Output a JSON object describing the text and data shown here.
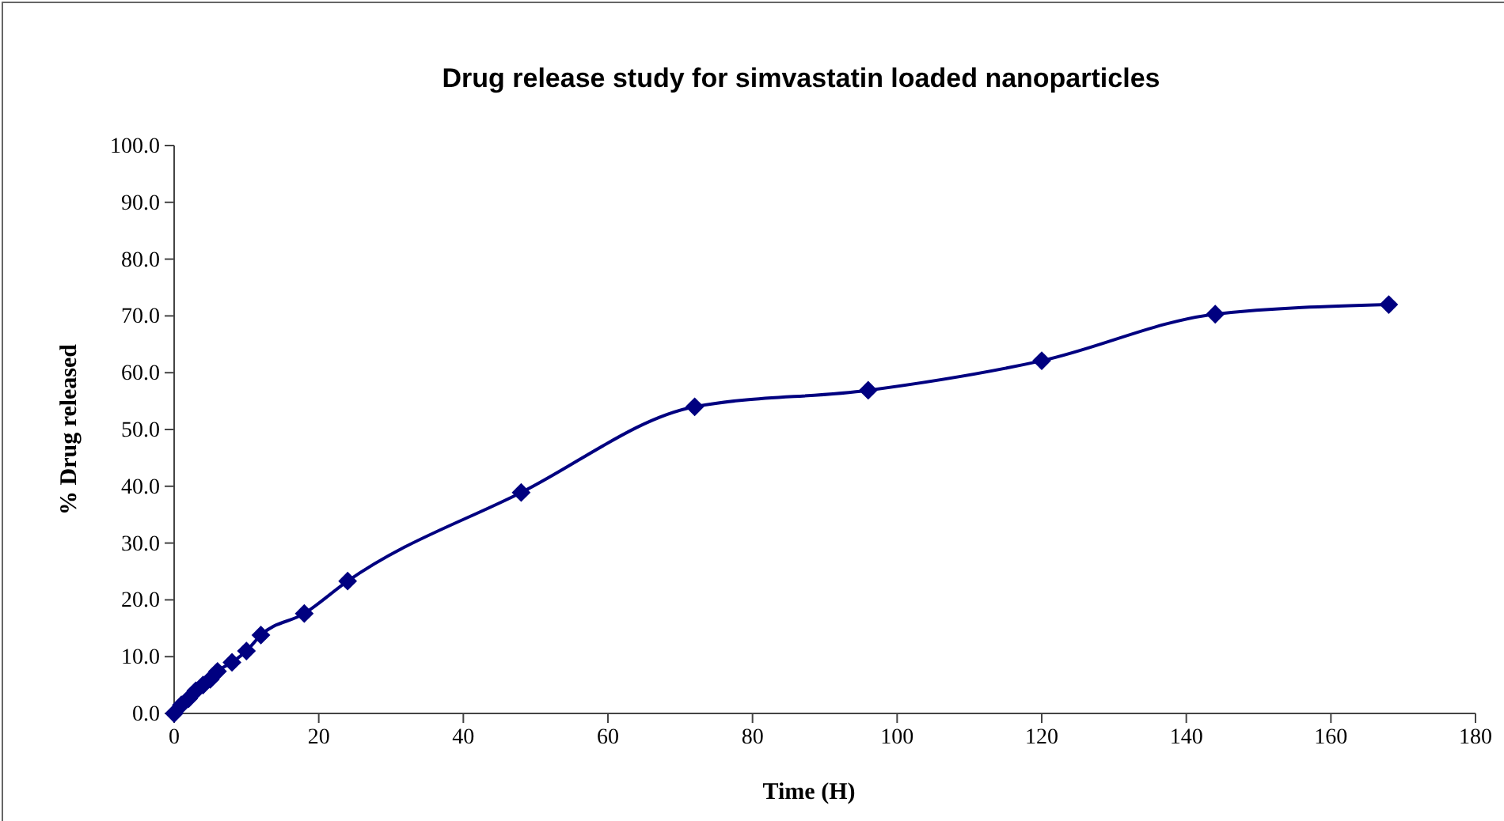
{
  "chart_data": {
    "type": "line",
    "title": "Drug release study for simvastatin loaded nanoparticles",
    "xlabel": "Time (H)",
    "ylabel": "% Drug released",
    "x": [
      0,
      1,
      2,
      3,
      4,
      5,
      6,
      8,
      10,
      12,
      18,
      24,
      48,
      72,
      96,
      120,
      144,
      168
    ],
    "series": [
      {
        "color": "#000080",
        "values": [
          0,
          1.5,
          2.6,
          4,
          5,
          6,
          7.4,
          9,
          11,
          13.8,
          17.6,
          23.3,
          38.9,
          54,
          56.9,
          62.1,
          70.3,
          72
        ]
      }
    ],
    "xlim": [
      0,
      180
    ],
    "xticks": [
      0,
      20,
      40,
      60,
      80,
      100,
      120,
      140,
      160,
      180
    ],
    "ylim": [
      0,
      100
    ],
    "yticks": [
      {
        "value": 0,
        "label": "0.0"
      },
      {
        "value": 10,
        "label": "10.0"
      },
      {
        "value": 20,
        "label": "20.0"
      },
      {
        "value": 30,
        "label": "30.0"
      },
      {
        "value": 40,
        "label": "40.0"
      },
      {
        "value": 50,
        "label": "50.0"
      },
      {
        "value": 60,
        "label": "60.0"
      },
      {
        "value": 70,
        "label": "70.0"
      },
      {
        "value": 80,
        "label": "80.0"
      },
      {
        "value": 90,
        "label": "90.0"
      },
      {
        "value": 100,
        "label": "100.0"
      }
    ],
    "marker": "diamond",
    "line_style": "solid",
    "grid": false
  }
}
